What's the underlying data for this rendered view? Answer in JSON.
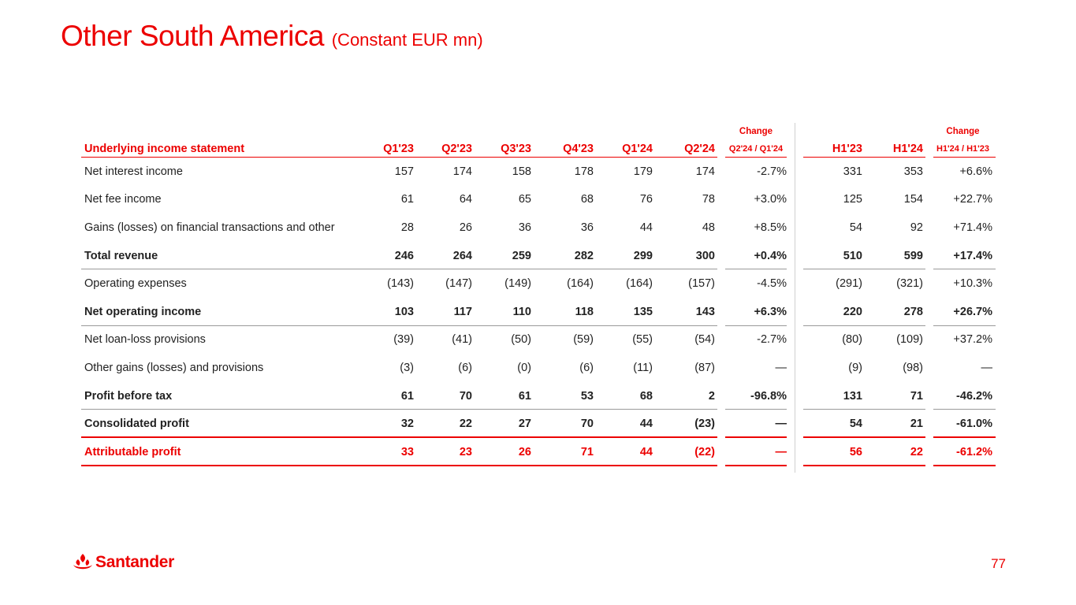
{
  "slide": {
    "title": "Other South America",
    "subtitle": "(Constant EUR mn)",
    "page_number": "77",
    "brand": "Santander",
    "accent_color": "#ec0000"
  },
  "table": {
    "change_label": "Change",
    "headers": {
      "label": "Underlying income statement",
      "q1_23": "Q1'23",
      "q2_23": "Q2'23",
      "q3_23": "Q3'23",
      "q4_23": "Q4'23",
      "q1_24": "Q1'24",
      "q2_24": "Q2'24",
      "chg_q": "Q2'24 / Q1'24",
      "h1_23": "H1'23",
      "h1_24": "H1'24",
      "chg_h": "H1'24 / H1'23"
    },
    "rows": [
      {
        "label": "Net interest income",
        "q1_23": "157",
        "q2_23": "174",
        "q3_23": "158",
        "q4_23": "178",
        "q1_24": "179",
        "q2_24": "174",
        "chg_q": "-2.7%",
        "h1_23": "331",
        "h1_24": "353",
        "chg_h": "+6.6%"
      },
      {
        "label": "Net fee income",
        "q1_23": "61",
        "q2_23": "64",
        "q3_23": "65",
        "q4_23": "68",
        "q1_24": "76",
        "q2_24": "78",
        "chg_q": "+3.0%",
        "h1_23": "125",
        "h1_24": "154",
        "chg_h": "+22.7%"
      },
      {
        "label": "Gains (losses) on financial transactions and other",
        "q1_23": "28",
        "q2_23": "26",
        "q3_23": "36",
        "q4_23": "36",
        "q1_24": "44",
        "q2_24": "48",
        "chg_q": "+8.5%",
        "h1_23": "54",
        "h1_24": "92",
        "chg_h": "+71.4%"
      },
      {
        "label": "Total revenue",
        "q1_23": "246",
        "q2_23": "264",
        "q3_23": "259",
        "q4_23": "282",
        "q1_24": "299",
        "q2_24": "300",
        "chg_q": "+0.4%",
        "h1_23": "510",
        "h1_24": "599",
        "chg_h": "+17.4%"
      },
      {
        "label": "Operating expenses",
        "q1_23": "(143)",
        "q2_23": "(147)",
        "q3_23": "(149)",
        "q4_23": "(164)",
        "q1_24": "(164)",
        "q2_24": "(157)",
        "chg_q": "-4.5%",
        "h1_23": "(291)",
        "h1_24": "(321)",
        "chg_h": "+10.3%"
      },
      {
        "label": "Net operating income",
        "q1_23": "103",
        "q2_23": "117",
        "q3_23": "110",
        "q4_23": "118",
        "q1_24": "135",
        "q2_24": "143",
        "chg_q": "+6.3%",
        "h1_23": "220",
        "h1_24": "278",
        "chg_h": "+26.7%"
      },
      {
        "label": "Net loan-loss provisions",
        "q1_23": "(39)",
        "q2_23": "(41)",
        "q3_23": "(50)",
        "q4_23": "(59)",
        "q1_24": "(55)",
        "q2_24": "(54)",
        "chg_q": "-2.7%",
        "h1_23": "(80)",
        "h1_24": "(109)",
        "chg_h": "+37.2%"
      },
      {
        "label": "Other gains (losses) and provisions",
        "q1_23": "(3)",
        "q2_23": "(6)",
        "q3_23": "(0)",
        "q4_23": "(6)",
        "q1_24": "(11)",
        "q2_24": "(87)",
        "chg_q": "—",
        "h1_23": "(9)",
        "h1_24": "(98)",
        "chg_h": "—"
      },
      {
        "label": "Profit before tax",
        "q1_23": "61",
        "q2_23": "70",
        "q3_23": "61",
        "q4_23": "53",
        "q1_24": "68",
        "q2_24": "2",
        "chg_q": "-96.8%",
        "h1_23": "131",
        "h1_24": "71",
        "chg_h": "-46.2%"
      },
      {
        "label": "Consolidated profit",
        "q1_23": "32",
        "q2_23": "22",
        "q3_23": "27",
        "q4_23": "70",
        "q1_24": "44",
        "q2_24": "(23)",
        "chg_q": "—",
        "h1_23": "54",
        "h1_24": "21",
        "chg_h": "-61.0%"
      },
      {
        "label": "Attributable profit",
        "q1_23": "33",
        "q2_23": "23",
        "q3_23": "26",
        "q4_23": "71",
        "q1_24": "44",
        "q2_24": "(22)",
        "chg_q": "—",
        "h1_23": "56",
        "h1_24": "22",
        "chg_h": "-61.2%"
      }
    ]
  }
}
